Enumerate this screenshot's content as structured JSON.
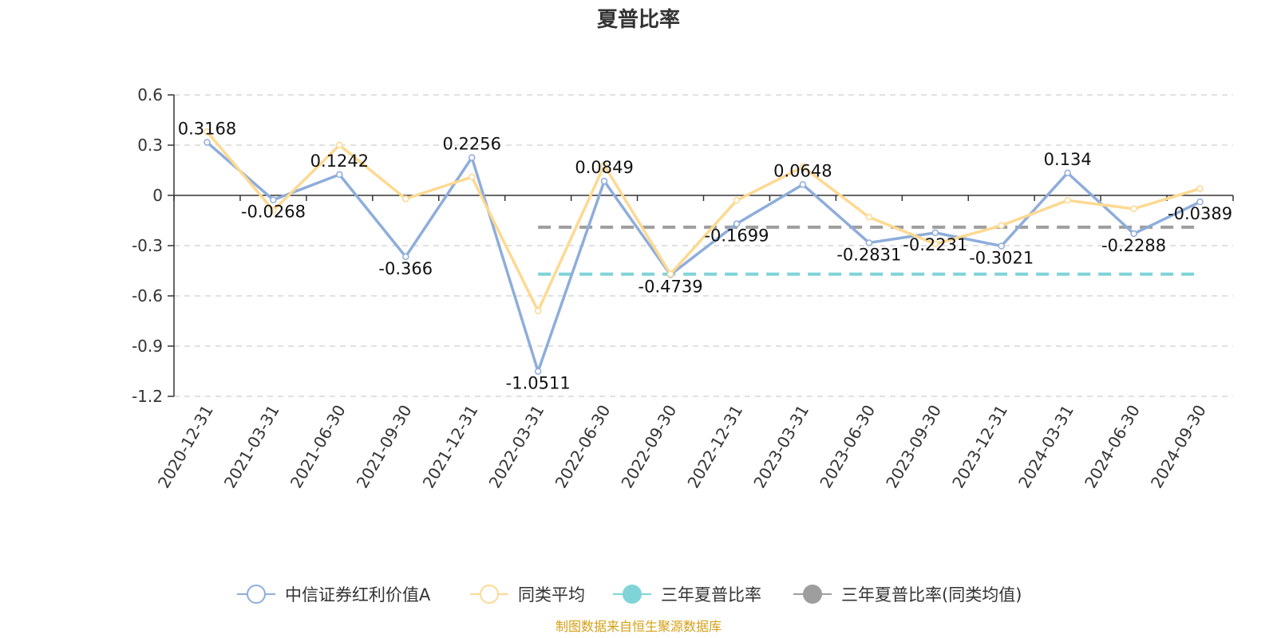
{
  "source_note": "制图数据来自恒生聚源数据库",
  "colors": {
    "fund": "#8eaddb",
    "peer_avg": "#fdd991",
    "three_year": "#7fd4d8",
    "three_year_peer": "#9e9e9e",
    "source": "#d4a017"
  },
  "chart_data": {
    "type": "line",
    "title": "夏普比率",
    "xlabel": "",
    "ylabel": "",
    "ylim": [
      -1.2,
      0.6
    ],
    "yticks": [
      "0.6",
      "0.3",
      "0",
      "-0.3",
      "-0.6",
      "-0.9",
      "-1.2"
    ],
    "grid": true,
    "legend_position": "bottom",
    "categories": [
      "2020-12-31",
      "2021-03-31",
      "2021-06-30",
      "2021-09-30",
      "2021-12-31",
      "2022-03-31",
      "2022-06-30",
      "2022-09-30",
      "2022-12-31",
      "2023-03-31",
      "2023-06-30",
      "2023-09-30",
      "2023-12-31",
      "2024-03-31",
      "2024-06-30",
      "2024-09-30"
    ],
    "series": [
      {
        "name": "中信证券红利价值A",
        "values": [
          0.3168,
          -0.0268,
          0.1242,
          -0.366,
          0.2256,
          -1.0511,
          0.0849,
          -0.4739,
          -0.1699,
          0.0648,
          -0.2831,
          -0.2231,
          -0.3021,
          0.134,
          -0.2288,
          -0.0389
        ],
        "labels": [
          "0.3168",
          "-0.0268",
          "0.1242",
          "-0.366",
          "0.2256",
          "-1.0511",
          "0.0849",
          "-0.4739",
          "-0.1699",
          "0.0648",
          "-0.2831",
          "-0.2231",
          "-0.3021",
          "0.134",
          "-0.2288",
          "-0.0389"
        ]
      },
      {
        "name": "同类平均",
        "values": [
          0.38,
          -0.09,
          0.3,
          -0.02,
          0.11,
          -0.69,
          0.18,
          -0.47,
          -0.03,
          0.17,
          -0.13,
          -0.29,
          -0.18,
          -0.03,
          -0.08,
          0.04
        ]
      },
      {
        "name": "三年夏普比率",
        "start": "2022-03-31",
        "end": "2024-09-30",
        "value": -0.47
      },
      {
        "name": "三年夏普比率(同类均值)",
        "start": "2022-03-31",
        "end": "2024-09-30",
        "value": -0.19
      }
    ]
  }
}
